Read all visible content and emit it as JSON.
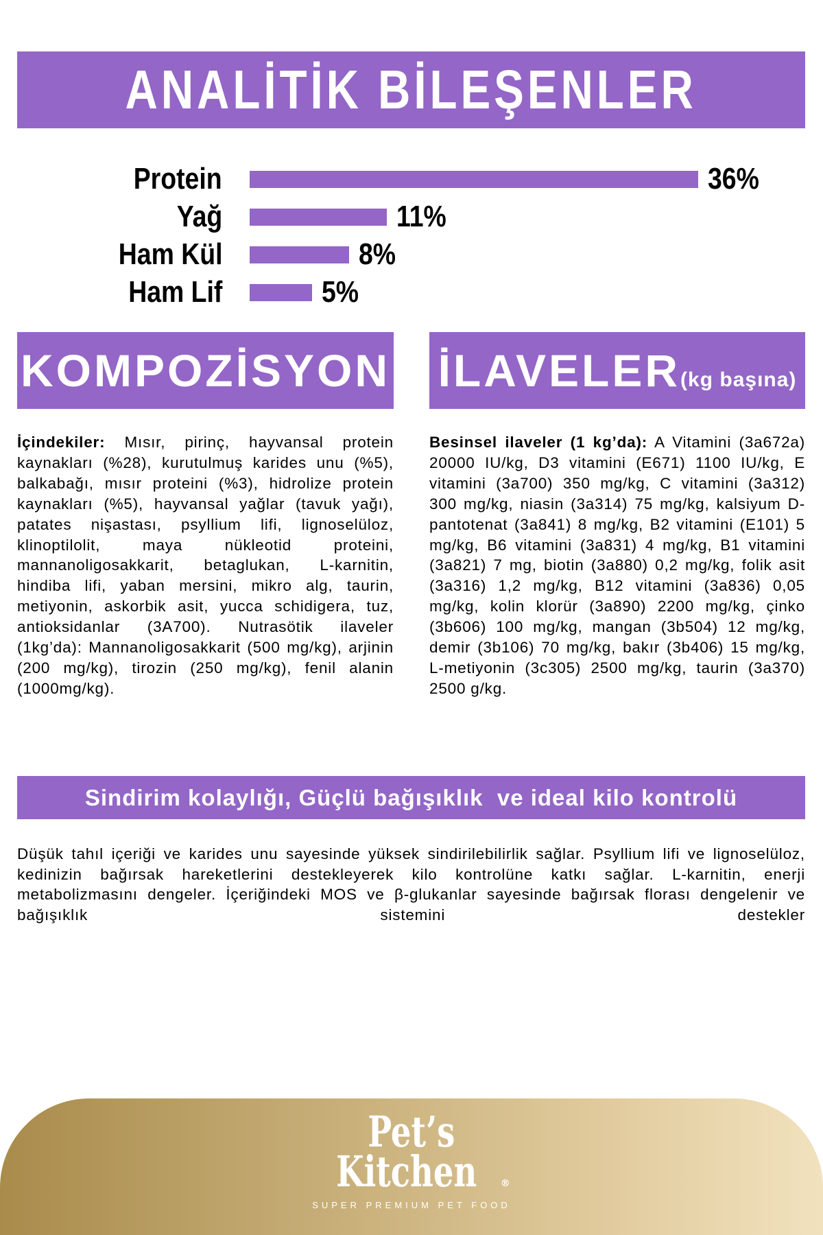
{
  "colors": {
    "accent": "#9366c7",
    "footer_gradient": [
      "#a98c4c",
      "#f1e2be"
    ]
  },
  "title": "ANALİTİK BİLEŞENLER",
  "chart_data": {
    "type": "bar",
    "orientation": "horizontal",
    "categories": [
      "Protein",
      "Yağ",
      "Ham Kül",
      "Ham Lif"
    ],
    "values": [
      36,
      11,
      8,
      5
    ],
    "value_labels": [
      "36%",
      "11%",
      "8%",
      "5%"
    ],
    "unit": "%"
  },
  "composition": {
    "heading": "KOMPOZİSYON",
    "label": "İçindekiler:",
    "text": " Mısır, pirinç, hayvansal protein kaynakları (%28), kurutulmuş karides unu (%5), balkabağı, mısır proteini (%3), hidrolize protein kaynakları (%5), hayvansal yağlar (tavuk yağı), patates nişastası, psyllium lifi, lignoselüloz, klinoptilolit, maya nükleotid proteini, mannanoligosakkarit, betaglukan, L-karnitin, hindiba lifi, yaban mersini, mikro alg, taurin, metiyonin, askorbik asit, yucca schidigera, tuz, antioksidanlar (3A700). Nutrasötik ilaveler (1kg’da): Mannanoligosakkarit (500 mg/kg), arjinin (200 mg/kg), tirozin (250 mg/kg), fenil alanin (1000mg/kg)."
  },
  "additives": {
    "heading": "İLAVELER",
    "heading_suffix": "(kg başına)",
    "label": "Besinsel ilaveler (1 kg’da):",
    "text": " A Vitamini (3a672a) 20000 IU/kg, D3 vitamini (E671) 1100 IU/kg, E vitamini (3a700) 350 mg/kg, C vitamini (3a312) 300 mg/kg, niasin (3a314) 75 mg/kg, kalsiyum D-pantotenat (3a841) 8 mg/kg, B2 vitamini (E101) 5 mg/kg, B6 vitamini (3a831) 4 mg/kg, B1 vitamini (3a821) 7 mg, biotin (3a880) 0,2 mg/kg, folik asit (3a316) 1,2 mg/kg, B12 vitamini (3a836) 0,05 mg/kg, kolin klorür (3a890) 2200 mg/kg, çinko (3b606) 100 mg/kg, mangan (3b504) 12 mg/kg, demir (3b106) 70 mg/kg, bakır (3b406) 15 mg/kg, L-metiyonin (3c305) 2500 mg/kg, taurin (3a370) 2500 g/kg."
  },
  "banner": "Sindirim kolaylığı, Güçlü bağışıklık  ve ideal kilo kontrolü",
  "paragraph": "Düşük tahıl içeriği ve karides unu sayesinde yüksek sindirilebilirlik sağlar. Psyllium lifi ve lignoselüloz, kedinizin bağırsak hareketlerini destekleyerek kilo kontrolüne katkı sağlar. L-karnitin, enerji metabolizmasını dengeler. İçeriğindeki MOS ve β-glukanlar sayesinde bağırsak florası dengelenir ve bağışıklık sistemini destekler",
  "logo": {
    "line1": "Pet’s",
    "line2": "Kitchen",
    "registered": "®",
    "tagline": "SUPER PREMIUM PET FOOD"
  }
}
